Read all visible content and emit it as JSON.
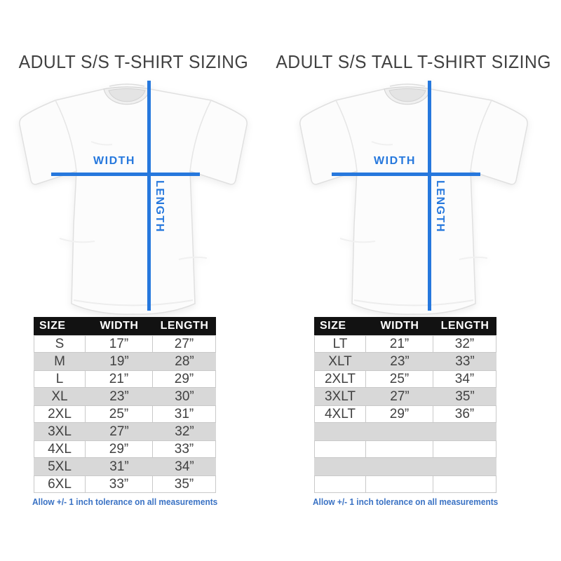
{
  "colors": {
    "accent_blue": "#2678dd",
    "note_blue": "#3a72c4",
    "table_header_bg": "#121212",
    "row_alt_gray": "#d8d8d8",
    "title_gray": "#414141"
  },
  "panels": [
    {
      "title": "ADULT S/S T-SHIRT SIZING",
      "diagram": {
        "width_label": "WIDTH",
        "length_label": "LENGTH"
      },
      "table": {
        "headers": [
          "SIZE",
          "WIDTH",
          "LENGTH"
        ],
        "rows": [
          [
            "S",
            "17”",
            "27”"
          ],
          [
            "M",
            "19”",
            "28”"
          ],
          [
            "L",
            "21”",
            "29”"
          ],
          [
            "XL",
            "23”",
            "30”"
          ],
          [
            "2XL",
            "25”",
            "31”"
          ],
          [
            "3XL",
            "27”",
            "32”"
          ],
          [
            "4XL",
            "29”",
            "33”"
          ],
          [
            "5XL",
            "31”",
            "34”"
          ],
          [
            "6XL",
            "33”",
            "35”"
          ]
        ],
        "empty_rows": 0
      },
      "tolerance_note": "Allow +/- 1 inch tolerance on all measurements"
    },
    {
      "title": "ADULT S/S TALL T-SHIRT SIZING",
      "diagram": {
        "width_label": "WIDTH",
        "length_label": "LENGTH"
      },
      "table": {
        "headers": [
          "SIZE",
          "WIDTH",
          "LENGTH"
        ],
        "rows": [
          [
            "LT",
            "21”",
            "32”"
          ],
          [
            "XLT",
            "23”",
            "33”"
          ],
          [
            "2XLT",
            "25”",
            "34”"
          ],
          [
            "3XLT",
            "27”",
            "35”"
          ],
          [
            "4XLT",
            "29”",
            "36”"
          ]
        ],
        "empty_rows": 4
      },
      "tolerance_note": "Allow +/- 1 inch tolerance on all measurements"
    }
  ]
}
